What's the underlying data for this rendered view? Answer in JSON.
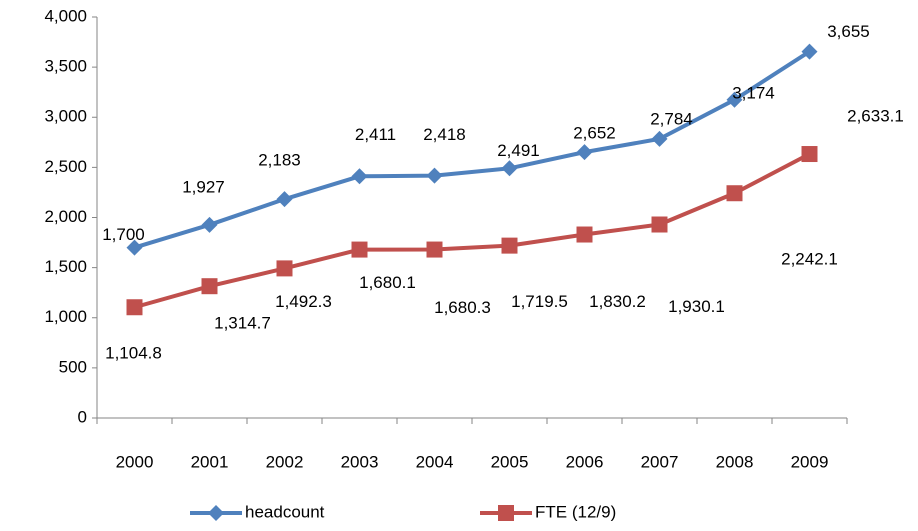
{
  "chart_data": {
    "type": "line",
    "categories": [
      "2000",
      "2001",
      "2002",
      "2003",
      "2004",
      "2005",
      "2006",
      "2007",
      "2008",
      "2009"
    ],
    "series": [
      {
        "name": "headcount",
        "color": "#4f81bd",
        "marker": "diamond",
        "values": [
          1700,
          1927,
          2183,
          2411,
          2418,
          2491,
          2652,
          2784,
          3174,
          3655
        ],
        "value_labels": [
          "1,700",
          "1,927",
          "2,183",
          "2,411",
          "2,418",
          "2,491",
          "2,652",
          "2,784",
          "3,174",
          "3,655"
        ]
      },
      {
        "name": "FTE (12/9)",
        "color": "#c0504d",
        "marker": "square",
        "values": [
          1104.8,
          1314.7,
          1492.3,
          1680.1,
          1680.3,
          1719.5,
          1830.2,
          1930.1,
          2242.1,
          2633.1
        ],
        "value_labels": [
          "1,104.8",
          "1,314.7",
          "1,492.3",
          "1,680.1",
          "1,680.3",
          "1,719.5",
          "1,830.2",
          "1,930.1",
          "2,242.1",
          "2,633.1"
        ]
      }
    ],
    "ylim": [
      0,
      4000
    ],
    "yticks": [
      0,
      500,
      {
        "value": 1000,
        "label": "1,000"
      },
      {
        "value": 1500,
        "label": "1,500"
      },
      {
        "value": 2000,
        "label": "2,000"
      },
      {
        "value": 2500,
        "label": "2,500"
      },
      {
        "value": 3000,
        "label": "3,000"
      },
      {
        "value": 3500,
        "label": "3,500"
      },
      {
        "value": 4000,
        "label": "4,000"
      }
    ],
    "grid": false,
    "legend": "bottom"
  }
}
